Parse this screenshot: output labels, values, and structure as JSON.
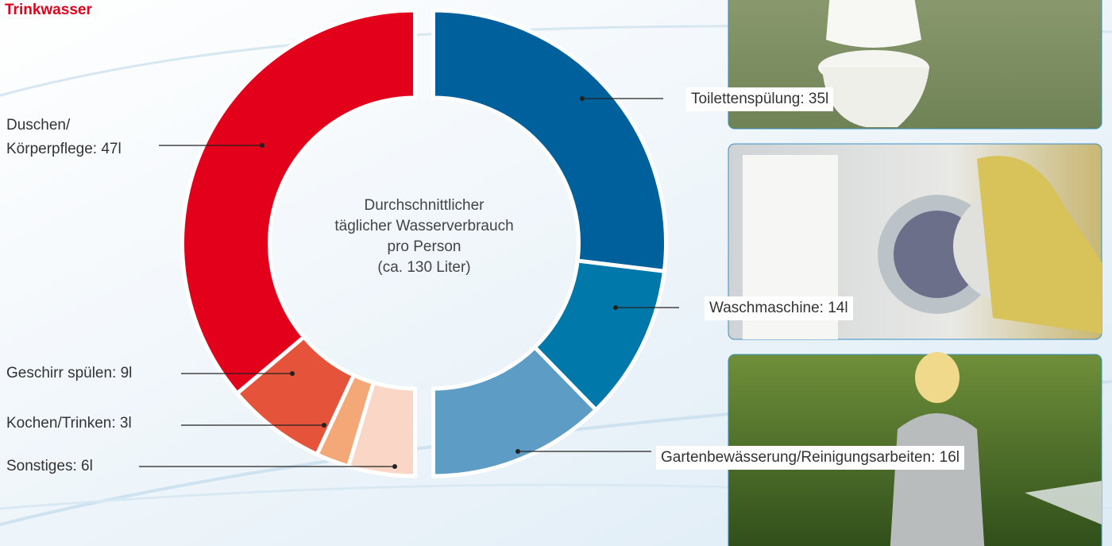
{
  "chart_data": {
    "type": "donut",
    "title": "Trinkwasser",
    "center_label": "Durchschnittlicher\ntäglicher Wasserverbrauch\npro Person\n(ca. 130 Liter)",
    "categories": [
      "Toilettenspülung: 35l",
      "Waschmaschine: 14l",
      "Gartenbewässerung/Reinigungsarbeiten: 16l",
      "Sonstiges: 6l",
      "Kochen/Trinken: 3l",
      "Geschirr spülen: 9l",
      "Duschen/\nKörperpflege: 47l"
    ],
    "values": [
      35,
      14,
      16,
      6,
      3,
      9,
      47
    ],
    "colors": [
      "#00609c",
      "#0078aa",
      "#5c9cc5",
      "#f9d6c6",
      "#f4a877",
      "#e5543a",
      "#e2001a"
    ]
  }
}
